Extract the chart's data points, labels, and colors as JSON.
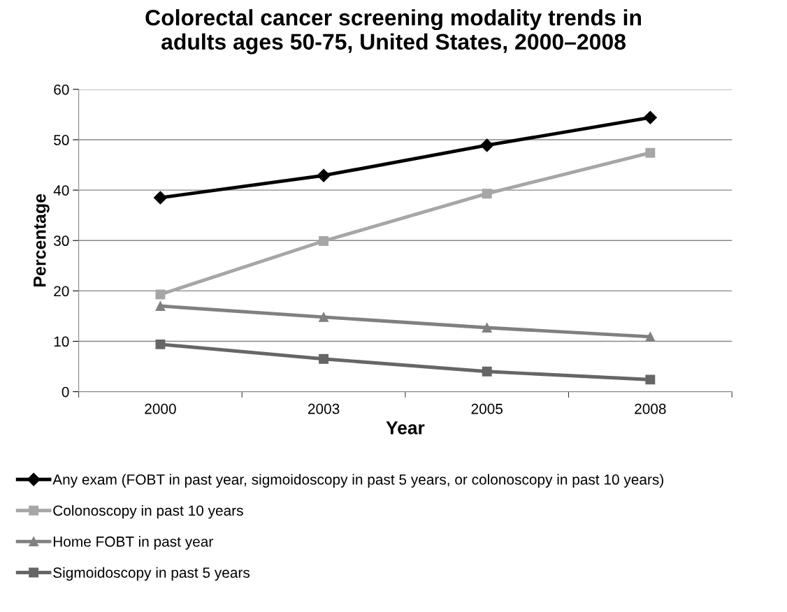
{
  "chart_data": {
    "type": "line",
    "title": "Colorectal cancer screening modality trends in\nadults ages 50-75, United States, 2000–2008",
    "xlabel": "Year",
    "ylabel": "Percentage",
    "categories": [
      "2000",
      "2003",
      "2005",
      "2008"
    ],
    "series": [
      {
        "name": "Any exam (FOBT in past year, sigmoidoscopy in past 5 years, or colonoscopy in past 10 years)",
        "color": "#000000",
        "marker": "diamond",
        "values": [
          38.5,
          42.9,
          48.9,
          54.4
        ]
      },
      {
        "name": "Colonoscopy in past 10 years",
        "color": "#a6a6a6",
        "marker": "square",
        "values": [
          19.3,
          29.9,
          39.3,
          47.4
        ]
      },
      {
        "name": "Home FOBT in past year",
        "color": "#808080",
        "marker": "triangle",
        "values": [
          17.0,
          14.8,
          12.7,
          10.9
        ]
      },
      {
        "name": "Sigmoidoscopy in past 5 years",
        "color": "#666666",
        "marker": "square",
        "values": [
          9.4,
          6.5,
          4.0,
          2.4
        ]
      }
    ],
    "ylim": [
      0,
      60
    ],
    "yticks": [
      0,
      10,
      20,
      30,
      40,
      50,
      60
    ],
    "grid": "y",
    "legend": "bottom",
    "line_style": "solid"
  }
}
